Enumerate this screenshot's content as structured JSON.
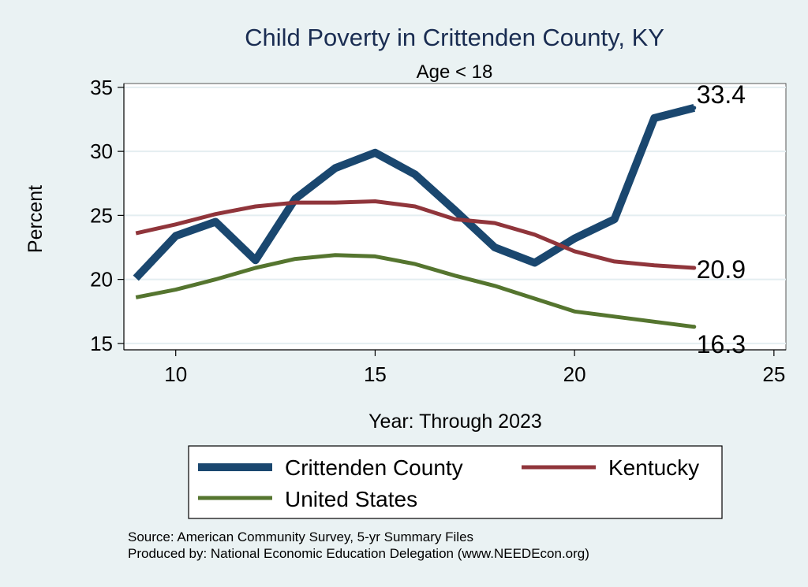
{
  "colors": {
    "background": "#eaf2f3",
    "plot_background": "#ffffff",
    "grid": "#e4eef1",
    "title": "#1a2d52",
    "crittenden": "#1a476f",
    "kentucky": "#90353b",
    "united_states": "#55752f"
  },
  "chart_data": {
    "type": "line",
    "title": "Child Poverty in Crittenden County, KY",
    "subtitle": "Age < 18",
    "xlabel": "Year: Through 2023",
    "ylabel": "Percent",
    "xlim": [
      8.7,
      25.3
    ],
    "ylim": [
      14.5,
      35.3
    ],
    "xticks": [
      10,
      15,
      20,
      25
    ],
    "yticks": [
      15,
      20,
      25,
      30,
      35
    ],
    "x": [
      9,
      10,
      11,
      12,
      13,
      14,
      15,
      16,
      17,
      18,
      19,
      20,
      21,
      22,
      23
    ],
    "series": [
      {
        "name": "Crittenden County",
        "color_key": "crittenden",
        "values": [
          20.1,
          23.4,
          24.5,
          21.5,
          26.3,
          28.7,
          29.9,
          28.2,
          25.4,
          22.5,
          21.3,
          23.2,
          24.7,
          32.6,
          33.4
        ],
        "end_label": "33.4"
      },
      {
        "name": "Kentucky",
        "color_key": "kentucky",
        "values": [
          23.6,
          24.3,
          25.1,
          25.7,
          26.0,
          26.0,
          26.1,
          25.7,
          24.7,
          24.4,
          23.5,
          22.2,
          21.4,
          21.1,
          20.9
        ],
        "end_label": "20.9"
      },
      {
        "name": "United States",
        "color_key": "united_states",
        "values": [
          18.6,
          19.2,
          20.0,
          20.9,
          21.6,
          21.9,
          21.8,
          21.2,
          20.3,
          19.5,
          18.5,
          17.5,
          17.1,
          16.7,
          16.3
        ],
        "end_label": "16.3"
      }
    ],
    "legend": {
      "placement": "bottom",
      "entries": [
        "Crittenden County",
        "Kentucky",
        "United States"
      ]
    },
    "notes": [
      "Source: American Community Survey, 5-yr Summary Files",
      "Produced by: National Economic Education Delegation (www.NEEDEcon.org)"
    ]
  }
}
